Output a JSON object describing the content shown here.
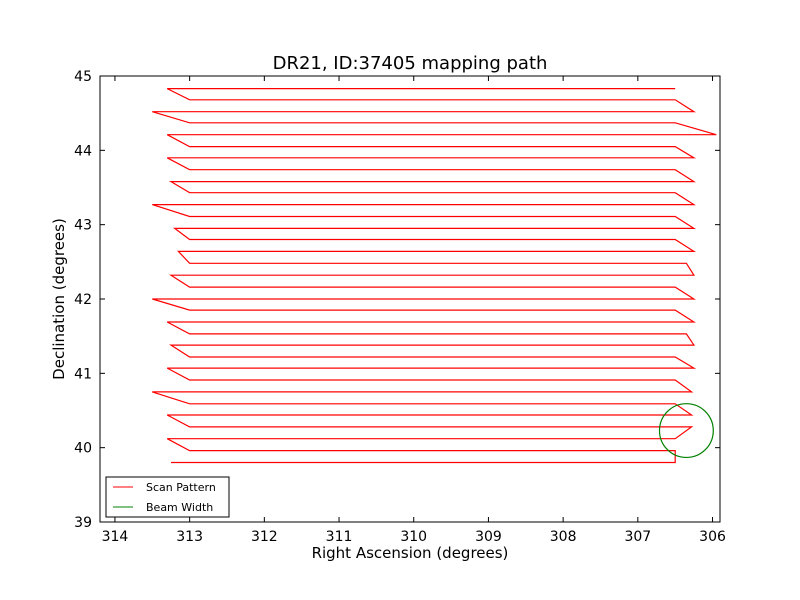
{
  "chart_data": {
    "type": "line",
    "title": "DR21, ID:37405 mapping path",
    "xlabel": "Right Ascension (degrees)",
    "ylabel": "Declination (degrees)",
    "xlim": [
      314.2,
      305.9
    ],
    "ylim": [
      39,
      45
    ],
    "x_inverted": true,
    "xticks": [
      314,
      313,
      312,
      311,
      310,
      309,
      308,
      307,
      306
    ],
    "yticks": [
      39,
      40,
      41,
      42,
      43,
      44,
      45
    ],
    "grid": false,
    "legend_position": "lower-left",
    "series": [
      {
        "name": "Scan Pattern",
        "color": "#ff0000",
        "scan_rows": [
          {
            "y": 39.8,
            "x_left": 313.25,
            "x_right": 306.5
          },
          {
            "y": 39.96,
            "x_left": 313.0,
            "x_right": 306.5
          },
          {
            "y": 40.12,
            "x_left": 313.3,
            "x_right": 306.5
          },
          {
            "y": 40.28,
            "x_left": 313.0,
            "x_right": 306.28
          },
          {
            "y": 40.44,
            "x_left": 313.3,
            "x_right": 306.28
          },
          {
            "y": 40.59,
            "x_left": 313.0,
            "x_right": 306.5
          },
          {
            "y": 40.75,
            "x_left": 313.5,
            "x_right": 306.28
          },
          {
            "y": 40.91,
            "x_left": 313.0,
            "x_right": 306.5
          },
          {
            "y": 41.07,
            "x_left": 313.3,
            "x_right": 306.25
          },
          {
            "y": 41.22,
            "x_left": 313.0,
            "x_right": 306.5
          },
          {
            "y": 41.38,
            "x_left": 313.25,
            "x_right": 306.25
          },
          {
            "y": 41.53,
            "x_left": 313.0,
            "x_right": 306.35
          },
          {
            "y": 41.69,
            "x_left": 313.3,
            "x_right": 306.25
          },
          {
            "y": 41.85,
            "x_left": 313.0,
            "x_right": 306.5
          },
          {
            "y": 42.0,
            "x_left": 313.5,
            "x_right": 306.25
          },
          {
            "y": 42.16,
            "x_left": 313.0,
            "x_right": 306.5
          },
          {
            "y": 42.32,
            "x_left": 313.25,
            "x_right": 306.25
          },
          {
            "y": 42.48,
            "x_left": 313.0,
            "x_right": 306.35
          },
          {
            "y": 42.64,
            "x_left": 313.15,
            "x_right": 306.25
          },
          {
            "y": 42.8,
            "x_left": 313.0,
            "x_right": 306.5
          },
          {
            "y": 42.95,
            "x_left": 313.2,
            "x_right": 306.25
          },
          {
            "y": 43.11,
            "x_left": 313.0,
            "x_right": 306.5
          },
          {
            "y": 43.27,
            "x_left": 313.5,
            "x_right": 306.25
          },
          {
            "y": 43.43,
            "x_left": 313.0,
            "x_right": 306.5
          },
          {
            "y": 43.58,
            "x_left": 313.25,
            "x_right": 306.25
          },
          {
            "y": 43.74,
            "x_left": 313.0,
            "x_right": 306.5
          },
          {
            "y": 43.9,
            "x_left": 313.3,
            "x_right": 306.25
          },
          {
            "y": 44.05,
            "x_left": 313.0,
            "x_right": 306.5
          },
          {
            "y": 44.21,
            "x_left": 313.3,
            "x_right": 305.95
          },
          {
            "y": 44.37,
            "x_left": 313.0,
            "x_right": 306.5
          },
          {
            "y": 44.52,
            "x_left": 313.5,
            "x_right": 306.25
          },
          {
            "y": 44.68,
            "x_left": 313.0,
            "x_right": 306.5
          },
          {
            "y": 44.83,
            "x_left": 313.3,
            "x_right": 306.5
          }
        ]
      },
      {
        "name": "Beam Width",
        "color": "#008000",
        "shape": "circle",
        "center": [
          306.35,
          40.23
        ],
        "radius_deg": 0.36
      }
    ]
  }
}
